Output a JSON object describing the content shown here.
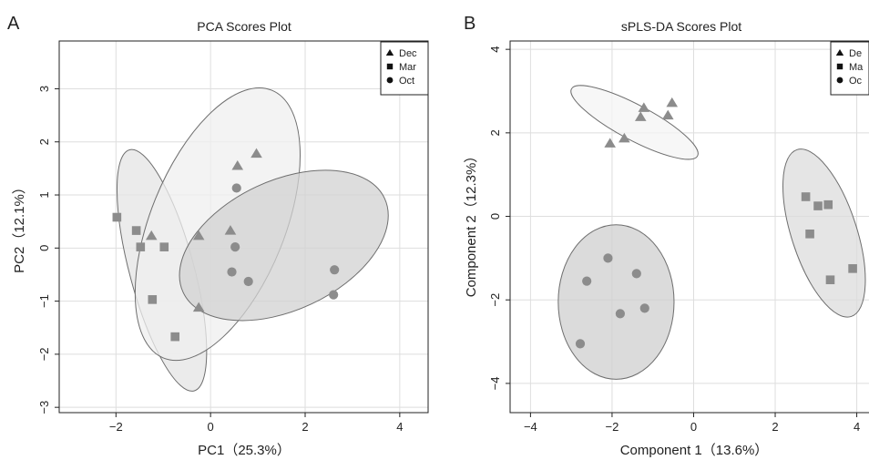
{
  "panels": [
    {
      "letter": "A"
    },
    {
      "letter": "B"
    }
  ],
  "chart_data": [
    {
      "type": "scatter",
      "title": "PCA Scores Plot",
      "xlabel": "PC1（25.3%）",
      "ylabel": "PC2（12.1%）",
      "xlim": [
        -3.2,
        4.6
      ],
      "ylim": [
        -3.1,
        3.9
      ],
      "xticks": [
        -2,
        0,
        2,
        4
      ],
      "xtick_labels": [
        "−2",
        "0",
        "2",
        "4"
      ],
      "yticks": [
        -3,
        -2,
        -1,
        0,
        1,
        2,
        3
      ],
      "ytick_labels": [
        "−3",
        "−2",
        "−1",
        "0",
        "1",
        "2",
        "3"
      ],
      "grid": true,
      "legend_position": "top-right",
      "legend": [
        "Dec",
        "Mar",
        "Oct"
      ],
      "series": [
        {
          "name": "Dec",
          "marker": "triangle",
          "points": [
            [
              -1.25,
              0.23
            ],
            [
              -0.25,
              0.23
            ],
            [
              0.57,
              1.55
            ],
            [
              0.97,
              1.78
            ],
            [
              0.42,
              0.33
            ],
            [
              -0.25,
              -1.12
            ]
          ]
        },
        {
          "name": "Mar",
          "marker": "square",
          "points": [
            [
              -1.98,
              0.58
            ],
            [
              -1.57,
              0.33
            ],
            [
              -1.48,
              0.02
            ],
            [
              -0.98,
              0.02
            ],
            [
              -1.23,
              -0.97
            ],
            [
              -0.75,
              -1.67
            ]
          ]
        },
        {
          "name": "Oct",
          "marker": "circle",
          "points": [
            [
              0.55,
              1.13
            ],
            [
              0.52,
              0.02
            ],
            [
              0.45,
              -0.45
            ],
            [
              0.8,
              -0.63
            ],
            [
              2.62,
              -0.41
            ],
            [
              2.6,
              -0.88
            ]
          ]
        }
      ],
      "ellipses": [
        {
          "group": "Mar",
          "cx": -1.03,
          "cy": -0.42,
          "rx": 0.68,
          "ry": 2.35,
          "angle_deg": -15,
          "fill": "#e4e4e4"
        },
        {
          "group": "Dec",
          "cx": 0.15,
          "cy": 0.45,
          "rx": 1.42,
          "ry": 2.72,
          "angle_deg": 22,
          "fill": "#efefef"
        },
        {
          "group": "Oct",
          "cx": 1.55,
          "cy": 0.05,
          "rx": 2.35,
          "ry": 1.22,
          "angle_deg": -25,
          "fill": "#d2d2d2"
        }
      ]
    },
    {
      "type": "scatter",
      "title": "sPLS-DA Scores Plot",
      "xlabel": "Component 1（13.6%）",
      "ylabel": "Component 2（12.3%）",
      "xlim": [
        -4.5,
        4.3
      ],
      "ylim": [
        -4.7,
        4.2
      ],
      "xticks": [
        -4,
        -2,
        0,
        2,
        4
      ],
      "xtick_labels": [
        "−4",
        "−2",
        "0",
        "2",
        "4"
      ],
      "yticks": [
        -4,
        -2,
        0,
        2,
        4
      ],
      "ytick_labels": [
        "−4",
        "−2",
        "0",
        "2",
        "4"
      ],
      "grid": true,
      "legend_position": "top-right",
      "legend": [
        "De",
        "Ma",
        "Oc"
      ],
      "series": [
        {
          "name": "De",
          "marker": "triangle",
          "points": [
            [
              -2.05,
              1.75
            ],
            [
              -1.7,
              1.87
            ],
            [
              -1.3,
              2.38
            ],
            [
              -1.22,
              2.6
            ],
            [
              -0.63,
              2.42
            ],
            [
              -0.53,
              2.72
            ]
          ]
        },
        {
          "name": "Ma",
          "marker": "square",
          "points": [
            [
              2.75,
              0.47
            ],
            [
              3.05,
              0.25
            ],
            [
              3.3,
              0.28
            ],
            [
              2.85,
              -0.42
            ],
            [
              3.35,
              -1.52
            ],
            [
              3.9,
              -1.25
            ]
          ]
        },
        {
          "name": "Oc",
          "marker": "circle",
          "points": [
            [
              -2.1,
              -1.0
            ],
            [
              -1.4,
              -1.37
            ],
            [
              -2.62,
              -1.55
            ],
            [
              -1.2,
              -2.2
            ],
            [
              -1.8,
              -2.33
            ],
            [
              -2.78,
              -3.05
            ]
          ]
        }
      ],
      "ellipses": [
        {
          "group": "De",
          "cx": -1.45,
          "cy": 2.25,
          "rx": 1.75,
          "ry": 0.42,
          "angle_deg": 28,
          "fill": "#f4f4f4"
        },
        {
          "group": "Oc",
          "cx": -1.9,
          "cy": -2.05,
          "rx": 1.42,
          "ry": 1.85,
          "angle_deg": 0,
          "fill": "#cfcfcf"
        },
        {
          "group": "Ma",
          "cx": 3.2,
          "cy": -0.4,
          "rx": 0.8,
          "ry": 2.1,
          "angle_deg": -18,
          "fill": "#dcdcdc"
        }
      ]
    }
  ]
}
